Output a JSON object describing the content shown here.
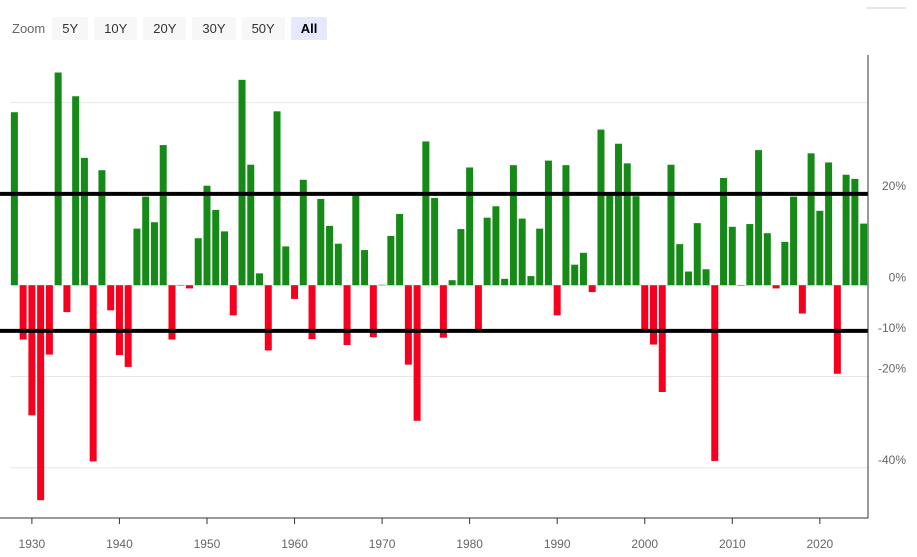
{
  "zoom": {
    "label": "Zoom",
    "buttons": [
      "5Y",
      "10Y",
      "20Y",
      "30Y",
      "50Y",
      "All"
    ],
    "selected": 5
  },
  "chart_data": {
    "type": "bar",
    "x": [
      1928,
      1929,
      1930,
      1931,
      1932,
      1933,
      1934,
      1935,
      1936,
      1937,
      1938,
      1939,
      1940,
      1941,
      1942,
      1943,
      1944,
      1945,
      1946,
      1947,
      1948,
      1949,
      1950,
      1951,
      1952,
      1953,
      1954,
      1955,
      1956,
      1957,
      1958,
      1959,
      1960,
      1961,
      1962,
      1963,
      1964,
      1965,
      1966,
      1967,
      1968,
      1969,
      1970,
      1971,
      1972,
      1973,
      1974,
      1975,
      1976,
      1977,
      1978,
      1979,
      1980,
      1981,
      1982,
      1983,
      1984,
      1985,
      1986,
      1987,
      1988,
      1989,
      1990,
      1991,
      1992,
      1993,
      1994,
      1995,
      1996,
      1997,
      1998,
      1999,
      2000,
      2001,
      2002,
      2003,
      2004,
      2005,
      2006,
      2007,
      2008,
      2009,
      2010,
      2011,
      2012,
      2013,
      2014,
      2015,
      2016,
      2017,
      2018,
      2019,
      2020,
      2021,
      2022,
      2023,
      2024,
      2025
    ],
    "values": [
      37.9,
      -11.9,
      -28.5,
      -47.1,
      -15.2,
      46.6,
      -5.9,
      41.4,
      27.9,
      -38.6,
      25.2,
      -5.5,
      -15.3,
      -17.9,
      12.4,
      19.4,
      13.8,
      30.7,
      -11.9,
      0,
      -0.7,
      10.3,
      21.8,
      16.5,
      11.8,
      -6.6,
      45,
      26.4,
      2.6,
      -14.3,
      38.1,
      8.5,
      -3,
      23.1,
      -11.8,
      18.9,
      13,
      9.1,
      -13.1,
      20.1,
      7.7,
      -11.4,
      0.1,
      10.8,
      15.6,
      -17.4,
      -29.7,
      31.5,
      19.1,
      -11.5,
      1.1,
      12.3,
      25.8,
      -9.7,
      14.8,
      17.3,
      1.4,
      26.3,
      14.6,
      2,
      12.4,
      27.3,
      -6.6,
      26.3,
      4.5,
      7.1,
      -1.5,
      34.1,
      20.3,
      31,
      26.7,
      19.5,
      -10.1,
      -13,
      -23.4,
      26.4,
      9,
      3,
      13.6,
      3.5,
      -38.5,
      23.5,
      12.8,
      0,
      13.4,
      29.6,
      11.4,
      -0.7,
      9.5,
      19.4,
      -6.2,
      28.9,
      16.3,
      26.9,
      -19.4,
      24.2,
      23.3,
      13.5
    ],
    "color": "#168a16",
    "negative_color": "#f5001f",
    "xlim": [
      1927.5,
      2025.5
    ],
    "xticks": [
      1930,
      1940,
      1950,
      1960,
      1970,
      1980,
      1990,
      2000,
      2010,
      2020
    ],
    "ylim": [
      -51,
      50
    ],
    "yticks": [
      {
        "value": -40,
        "label": "-40%"
      },
      {
        "value": -20,
        "label": "-20%"
      },
      {
        "value": 0,
        "label": "0%"
      },
      {
        "value": 20,
        "label": "20%"
      }
    ],
    "ygrid": [
      -40,
      -20,
      0,
      20,
      40
    ],
    "plot_lines": [
      {
        "value": 20
      },
      {
        "value": -10,
        "label": "-10%"
      }
    ]
  }
}
